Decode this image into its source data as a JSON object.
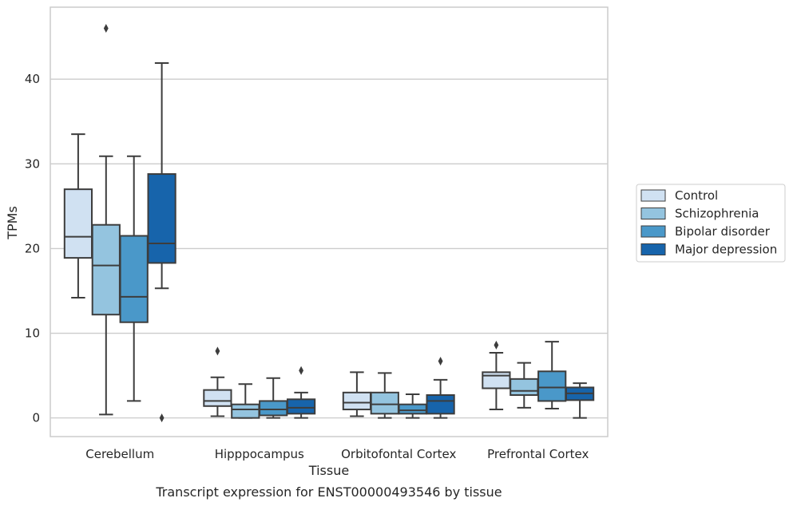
{
  "chart_data": {
    "type": "box",
    "title": "",
    "caption": "Transcript expression for ENST00000493546 by tissue",
    "xlabel": "Tissue",
    "ylabel": "TPMs",
    "ylim": [
      -2.2,
      48.5
    ],
    "yticks": [
      0,
      10,
      20,
      30,
      40
    ],
    "grid": "horizontal",
    "legend_position": "right",
    "categories": [
      "Cerebellum",
      "Hipppocampus",
      "Orbitofontal Cortex",
      "Prefrontal Cortex"
    ],
    "series": [
      {
        "name": "Control",
        "color": "#d0e1f2",
        "boxes": [
          {
            "whislo": 14.2,
            "q1": 18.9,
            "med": 21.4,
            "q3": 27.0,
            "whishi": 33.5,
            "fliers": []
          },
          {
            "whislo": 0.2,
            "q1": 1.4,
            "med": 2.0,
            "q3": 3.3,
            "whishi": 4.8,
            "fliers": [
              7.9
            ]
          },
          {
            "whislo": 0.2,
            "q1": 1.0,
            "med": 1.8,
            "q3": 3.0,
            "whishi": 5.4,
            "fliers": []
          },
          {
            "whislo": 1.0,
            "q1": 3.5,
            "med": 5.0,
            "q3": 5.4,
            "whishi": 7.7,
            "fliers": [
              8.6
            ]
          }
        ]
      },
      {
        "name": "Schizophrenia",
        "color": "#94c4df",
        "boxes": [
          {
            "whislo": 0.4,
            "q1": 12.2,
            "med": 18.0,
            "q3": 22.8,
            "whishi": 30.9,
            "fliers": [
              46.0
            ]
          },
          {
            "whislo": 0.0,
            "q1": 0.0,
            "med": 1.0,
            "q3": 1.6,
            "whishi": 4.0,
            "fliers": []
          },
          {
            "whislo": 0.0,
            "q1": 0.5,
            "med": 1.6,
            "q3": 3.0,
            "whishi": 5.3,
            "fliers": []
          },
          {
            "whislo": 1.2,
            "q1": 2.7,
            "med": 3.2,
            "q3": 4.6,
            "whishi": 6.5,
            "fliers": []
          }
        ]
      },
      {
        "name": "Bipolar disorder",
        "color": "#4a98c9",
        "boxes": [
          {
            "whislo": 2.0,
            "q1": 11.3,
            "med": 14.3,
            "q3": 21.5,
            "whishi": 30.9,
            "fliers": []
          },
          {
            "whislo": 0.0,
            "q1": 0.3,
            "med": 1.0,
            "q3": 2.0,
            "whishi": 4.7,
            "fliers": []
          },
          {
            "whislo": 0.0,
            "q1": 0.5,
            "med": 0.9,
            "q3": 1.6,
            "whishi": 2.8,
            "fliers": []
          },
          {
            "whislo": 1.1,
            "q1": 2.0,
            "med": 3.6,
            "q3": 5.5,
            "whishi": 9.0,
            "fliers": []
          }
        ]
      },
      {
        "name": "Major depression",
        "color": "#1764ab",
        "boxes": [
          {
            "whislo": 15.3,
            "q1": 18.3,
            "med": 20.6,
            "q3": 28.8,
            "whishi": 41.9,
            "fliers": [
              0.0
            ]
          },
          {
            "whislo": 0.0,
            "q1": 0.5,
            "med": 1.2,
            "q3": 2.2,
            "whishi": 3.0,
            "fliers": [
              5.6
            ]
          },
          {
            "whislo": 0.0,
            "q1": 0.5,
            "med": 2.0,
            "q3": 2.7,
            "whishi": 4.5,
            "fliers": [
              6.7
            ]
          },
          {
            "whislo": 0.0,
            "q1": 2.1,
            "med": 2.9,
            "q3": 3.6,
            "whishi": 4.1,
            "fliers": []
          }
        ]
      }
    ]
  }
}
